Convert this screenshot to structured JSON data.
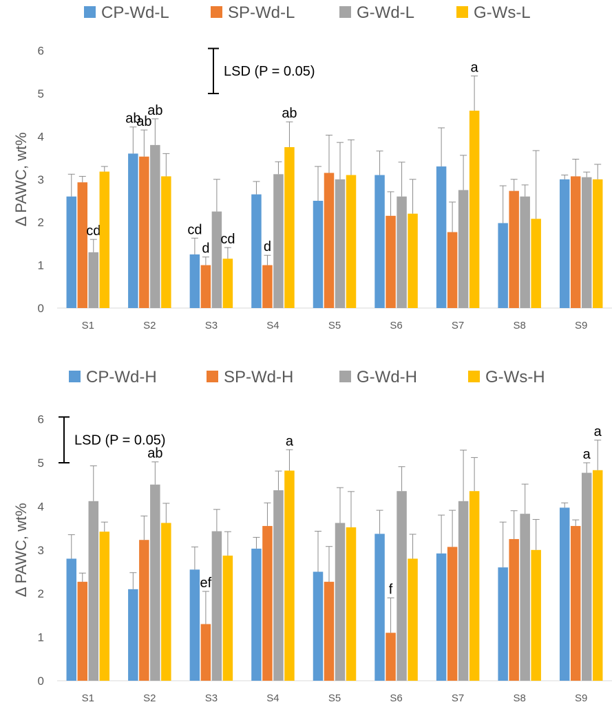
{
  "colors": {
    "CP": "#5B9BD5",
    "SP": "#ED7D31",
    "GWd": "#A5A5A5",
    "GWs": "#FFC000",
    "error_bar": "#8C8C8C",
    "lsd_bar": "#000000",
    "axis_text": "#595959",
    "grid": "none"
  },
  "chart_data": [
    {
      "type": "bar",
      "title": "",
      "xlabel": "",
      "ylabel": "Δ PAWC, wt%",
      "ylim": [
        0,
        6
      ],
      "yticks": [
        0,
        1,
        2,
        3,
        4,
        5,
        6
      ],
      "grid": false,
      "legend_position": "top",
      "categories": [
        "S1",
        "S2",
        "S3",
        "S4",
        "S5",
        "S6",
        "S7",
        "S8",
        "S9"
      ],
      "series": [
        {
          "name": "CP-Wd-L",
          "color_key": "CP",
          "values": [
            2.6,
            3.6,
            1.25,
            2.65,
            2.5,
            3.1,
            3.3,
            1.98,
            3.0
          ],
          "errors": [
            0.52,
            0.62,
            0.38,
            0.3,
            0.8,
            0.56,
            0.9,
            0.87,
            0.1
          ],
          "labels": [
            "",
            "ab",
            "cd",
            "",
            "",
            "",
            "",
            "",
            ""
          ]
        },
        {
          "name": "SP-Wd-L",
          "color_key": "SP",
          "values": [
            2.93,
            3.53,
            1.0,
            1.0,
            3.15,
            2.15,
            1.77,
            2.73,
            3.07
          ],
          "errors": [
            0.14,
            0.62,
            0.19,
            0.23,
            0.88,
            0.56,
            0.7,
            0.27,
            0.4
          ],
          "labels": [
            "",
            "ab",
            "d",
            "d",
            "",
            "",
            "",
            "",
            ""
          ]
        },
        {
          "name": "G-Wd-L",
          "color_key": "GWd",
          "values": [
            1.3,
            3.8,
            2.25,
            3.12,
            3.0,
            2.6,
            2.75,
            2.6,
            3.05
          ],
          "errors": [
            0.3,
            0.61,
            0.75,
            0.29,
            0.86,
            0.8,
            0.81,
            0.27,
            0.12
          ],
          "labels": [
            "cd",
            "ab",
            "",
            "",
            "",
            "",
            "",
            "",
            ""
          ]
        },
        {
          "name": "G-Ws-L",
          "color_key": "GWs",
          "values": [
            3.18,
            3.07,
            1.15,
            3.75,
            3.1,
            2.2,
            4.6,
            2.08,
            3.0
          ],
          "errors": [
            0.12,
            0.53,
            0.26,
            0.59,
            0.82,
            0.8,
            0.81,
            1.59,
            0.35
          ],
          "labels": [
            "",
            "",
            "cd",
            "ab",
            "",
            "",
            "a",
            "",
            ""
          ]
        }
      ],
      "lsd": {
        "label": "LSD (P = 0.05)",
        "from": 5.0,
        "to": 6.05
      }
    },
    {
      "type": "bar",
      "title": "",
      "xlabel": "",
      "ylabel": "Δ PAWC, wt%",
      "ylim": [
        0,
        6
      ],
      "yticks": [
        0,
        1,
        2,
        3,
        4,
        5,
        6
      ],
      "grid": false,
      "legend_position": "top",
      "categories": [
        "S1",
        "S2",
        "S3",
        "S4",
        "S5",
        "S6",
        "S7",
        "S8",
        "S9"
      ],
      "series": [
        {
          "name": "CP-Wd-H",
          "color_key": "CP",
          "values": [
            2.8,
            2.1,
            2.55,
            3.03,
            2.5,
            3.37,
            2.92,
            2.6,
            3.97
          ],
          "errors": [
            0.55,
            0.38,
            0.52,
            0.26,
            0.93,
            0.54,
            0.88,
            1.04,
            0.11
          ],
          "labels": [
            "",
            "",
            "",
            "",
            "",
            "",
            "",
            "",
            ""
          ]
        },
        {
          "name": "SP-Wd-H",
          "color_key": "SP",
          "values": [
            2.27,
            3.23,
            1.3,
            3.55,
            2.27,
            1.1,
            3.07,
            3.25,
            3.55
          ],
          "errors": [
            0.2,
            0.55,
            0.75,
            0.53,
            0.81,
            0.8,
            0.84,
            0.65,
            0.14
          ],
          "labels": [
            "",
            "",
            "ef",
            "",
            "",
            "f",
            "",
            "",
            ""
          ]
        },
        {
          "name": "G-Wd-H",
          "color_key": "GWd",
          "values": [
            4.12,
            4.5,
            3.43,
            4.37,
            3.62,
            4.35,
            4.12,
            3.83,
            4.77
          ],
          "errors": [
            0.81,
            0.52,
            0.5,
            0.44,
            0.81,
            0.56,
            1.17,
            0.68,
            0.23
          ],
          "labels": [
            "",
            "ab",
            "",
            "",
            "",
            "",
            "",
            "",
            "a"
          ]
        },
        {
          "name": "G-Ws-H",
          "color_key": "GWs",
          "values": [
            3.42,
            3.62,
            2.87,
            4.82,
            3.52,
            2.8,
            4.35,
            3.0,
            4.83
          ],
          "errors": [
            0.22,
            0.45,
            0.55,
            0.48,
            0.82,
            0.56,
            0.77,
            0.7,
            0.69
          ],
          "labels": [
            "",
            "",
            "",
            "a",
            "",
            "",
            "",
            "",
            "a"
          ]
        }
      ],
      "lsd": {
        "label": "LSD (P = 0.05)",
        "from": 5.0,
        "to": 6.05
      }
    }
  ]
}
